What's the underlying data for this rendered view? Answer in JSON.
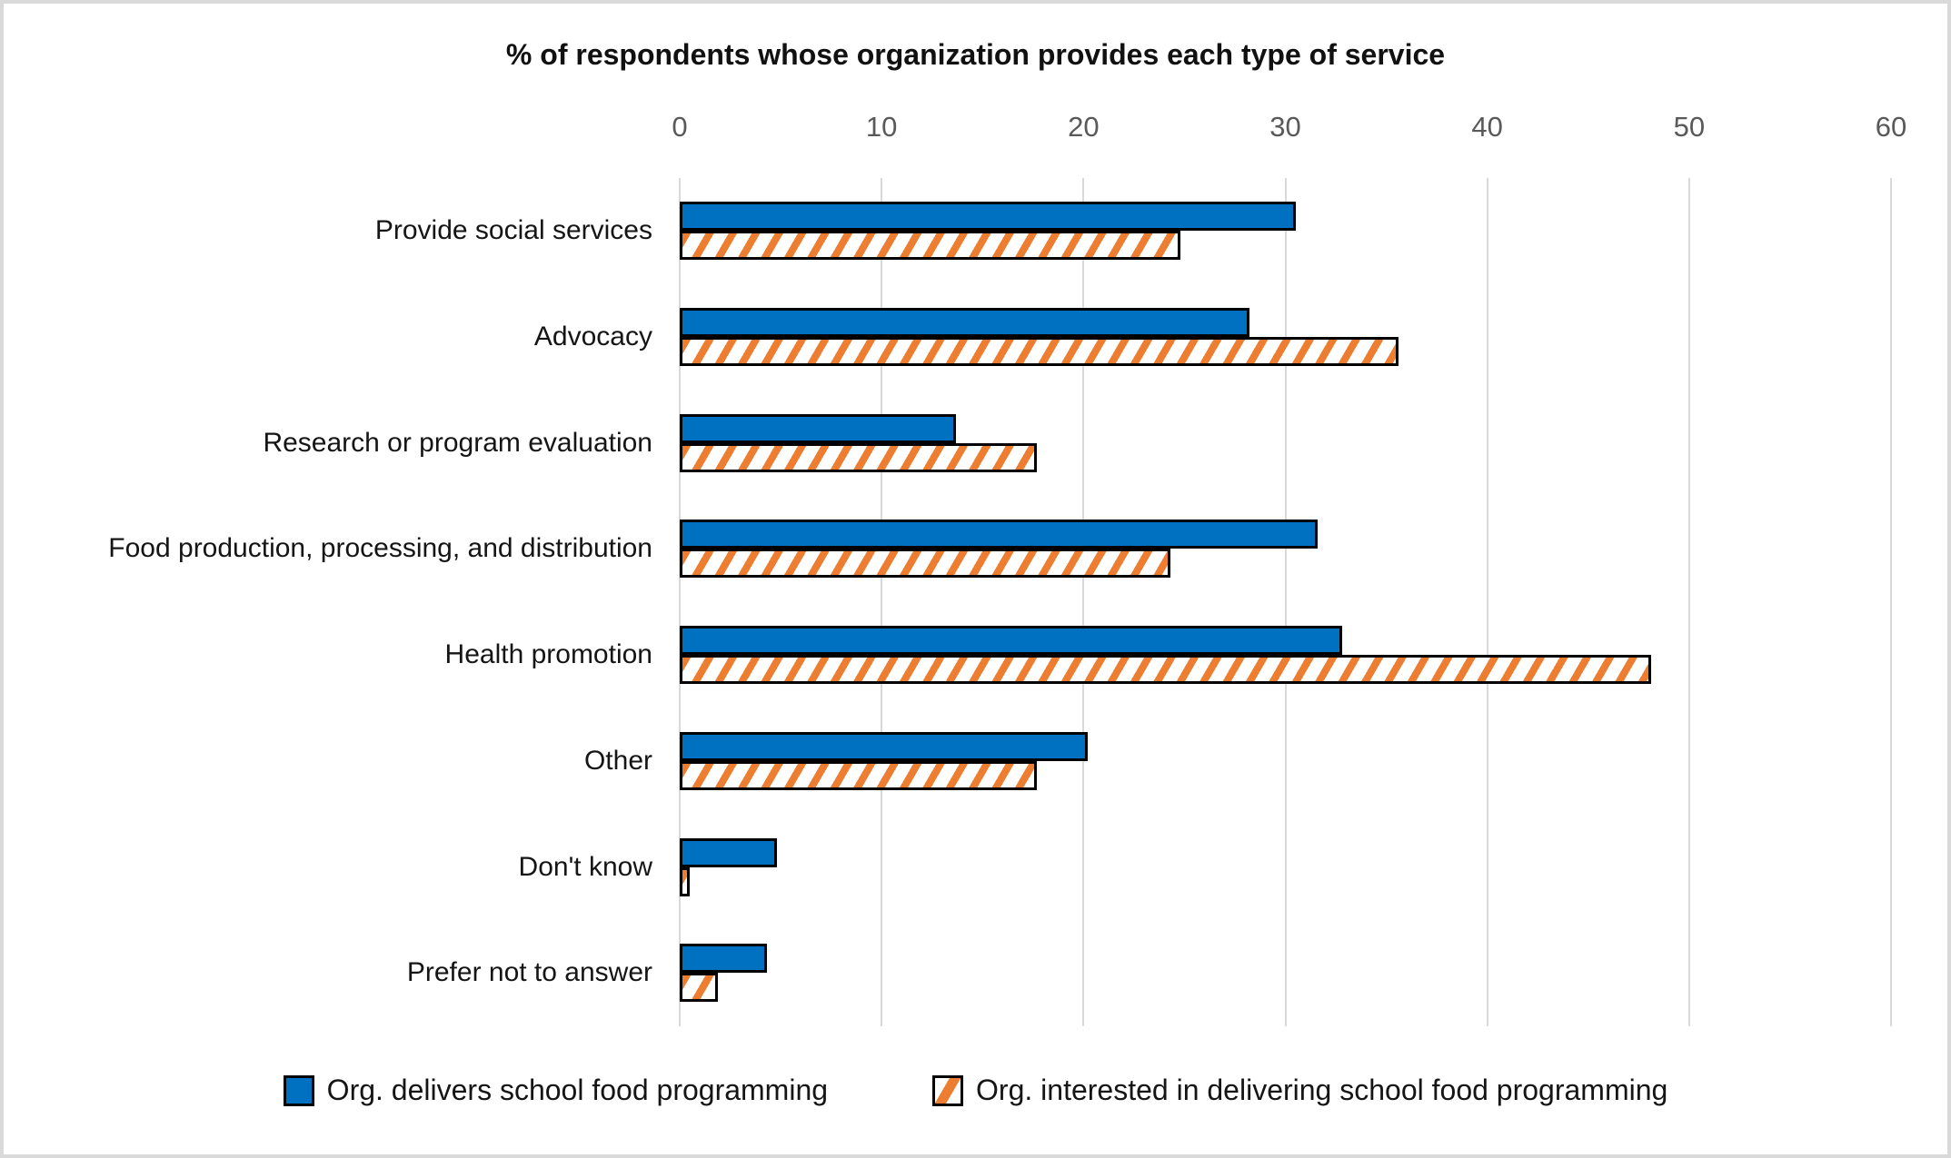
{
  "title": "% of respondents whose organization provides each type of service",
  "legend": {
    "items": [
      {
        "label": "Org. delivers school food programming",
        "style": "solid-blue"
      },
      {
        "label": "Org. interested in delivering school food programming",
        "style": "orange-diagonal-stripes"
      }
    ]
  },
  "colors": {
    "series_delivers": "#0070C0",
    "series_interested": "#ED7D31",
    "bar_outline": "#000000",
    "gridline": "#D9D9D9",
    "tick_label": "#595959",
    "frame_border": "#D9D9D9",
    "background": "#FFFFFF"
  },
  "chart_data": {
    "type": "bar",
    "orientation": "horizontal",
    "title": "% of respondents whose organization provides each type of service",
    "xlabel": "",
    "ylabel": "",
    "xlim": [
      0,
      60
    ],
    "xticks": [
      0,
      10,
      20,
      30,
      40,
      50,
      60
    ],
    "grid": "vertical",
    "legend_position": "bottom",
    "categories": [
      "Provide social services",
      "Advocacy",
      "Research or program evaluation",
      "Food production, processing, and distribution",
      "Health promotion",
      "Other",
      "Don't know",
      "Prefer not to answer"
    ],
    "series": [
      {
        "name": "Org. delivers school food programming",
        "values": [
          30.5,
          28.2,
          13.7,
          31.6,
          32.8,
          20.2,
          4.8,
          4.3
        ]
      },
      {
        "name": "Org. interested in delivering school food programming",
        "values": [
          24.8,
          35.6,
          17.7,
          24.3,
          48.1,
          17.7,
          0.5,
          1.9
        ]
      }
    ]
  }
}
